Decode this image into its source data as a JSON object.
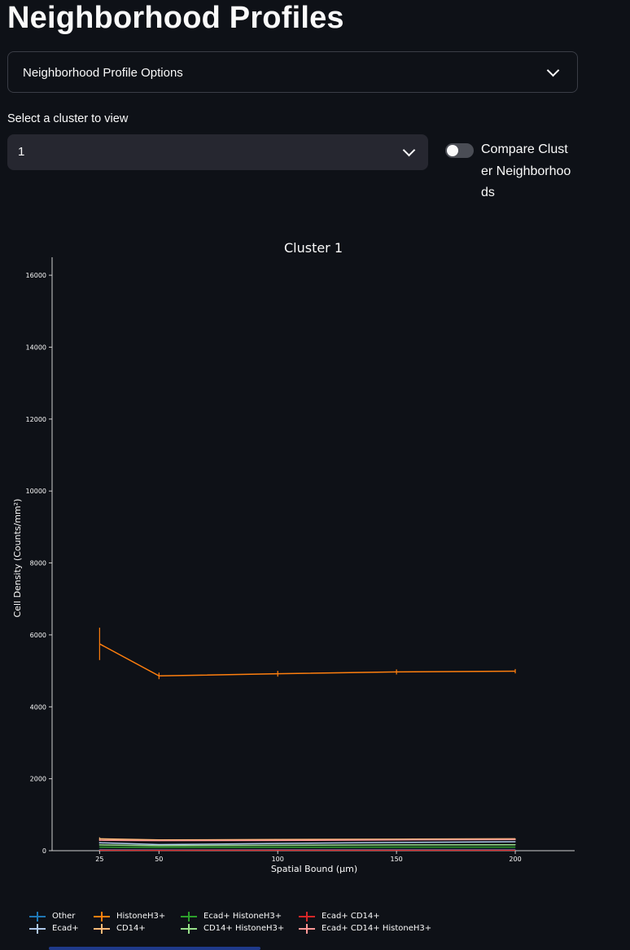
{
  "page": {
    "title": "Neighborhood Profiles"
  },
  "expander": {
    "label": "Neighborhood Profile Options"
  },
  "cluster_select": {
    "label": "Select a cluster to view",
    "value": "1"
  },
  "compare_toggle": {
    "label": "Compare Cluster Neighborhoods",
    "checked": false
  },
  "chart_data": {
    "type": "line",
    "title": "Cluster 1",
    "xlabel": "Spatial Bound (µm)",
    "ylabel": "Cell Density (Counts/mm²)",
    "x": [
      25,
      50,
      100,
      150,
      200
    ],
    "xticks": [
      25,
      50,
      100,
      150,
      200
    ],
    "xlim": [
      5,
      225
    ],
    "yticks": [
      0,
      2000,
      4000,
      6000,
      8000,
      10000,
      12000,
      14000,
      16000
    ],
    "ylim": [
      0,
      16500
    ],
    "grid": false,
    "legend_position": "below",
    "series": [
      {
        "name": "Other",
        "color": "#1f77b4",
        "values": [
          30,
          25,
          28,
          30,
          30
        ],
        "err": [
          10,
          5,
          5,
          5,
          5
        ]
      },
      {
        "name": "Ecad+",
        "color": "#aec7e8",
        "values": [
          220,
          170,
          200,
          230,
          250
        ],
        "err": [
          20,
          10,
          10,
          10,
          10
        ]
      },
      {
        "name": "HistoneH3+",
        "color": "#ff7f0e",
        "values": [
          5750,
          4860,
          4920,
          4970,
          4990
        ],
        "err": [
          450,
          90,
          80,
          70,
          60
        ]
      },
      {
        "name": "CD14+",
        "color": "#ffbb78",
        "values": [
          330,
          300,
          310,
          320,
          330
        ],
        "err": [
          40,
          15,
          10,
          10,
          10
        ]
      },
      {
        "name": "Ecad+ HistoneH3+",
        "color": "#2ca02c",
        "values": [
          100,
          90,
          95,
          100,
          100
        ],
        "err": [
          10,
          5,
          5,
          5,
          5
        ]
      },
      {
        "name": "CD14+ HistoneH3+",
        "color": "#98df8a",
        "values": [
          160,
          140,
          150,
          160,
          165
        ],
        "err": [
          15,
          10,
          10,
          10,
          10
        ]
      },
      {
        "name": "Ecad+ CD14+",
        "color": "#d62728",
        "values": [
          15,
          12,
          14,
          15,
          15
        ],
        "err": [
          5,
          3,
          3,
          3,
          3
        ]
      },
      {
        "name": "Ecad+ CD14+ HistoneH3+",
        "color": "#ff9896",
        "values": [
          290,
          280,
          285,
          300,
          310
        ],
        "err": [
          20,
          10,
          10,
          10,
          10
        ]
      }
    ]
  }
}
